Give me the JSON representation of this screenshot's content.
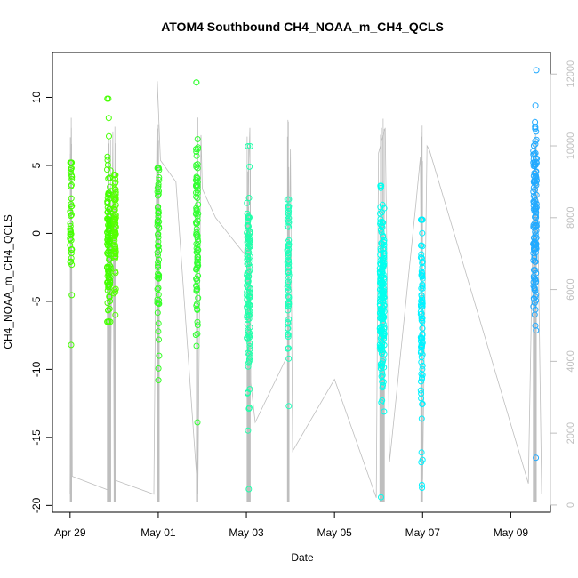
{
  "chart_data": {
    "type": "scatter",
    "title": "ATOM4 Southbound CH4_NOAA_m_CH4_QCLS",
    "xlabel": "Date",
    "ylabel": "CH4_NOAA_m_CH4_QCLS",
    "x_unit": "days since Apr 29",
    "xlim": [
      -0.4,
      10.9
    ],
    "ylim": [
      -20.5,
      13.3
    ],
    "y2lim": [
      -200,
      12600
    ],
    "x_ticks": [
      {
        "label": "Apr 29",
        "x": 0
      },
      {
        "label": "May 01",
        "x": 2
      },
      {
        "label": "May 03",
        "x": 4
      },
      {
        "label": "May 05",
        "x": 6
      },
      {
        "label": "May 07",
        "x": 8
      },
      {
        "label": "May 09",
        "x": 10
      }
    ],
    "y_ticks": [
      {
        "label": "10",
        "v": 10
      },
      {
        "label": "5",
        "v": 5
      },
      {
        "label": "0",
        "v": 0
      },
      {
        "label": "-5",
        "v": -5
      },
      {
        "label": "-10",
        "v": -10
      },
      {
        "label": "-15",
        "v": -15
      },
      {
        "label": "-20",
        "v": -20
      }
    ],
    "y2_ticks": [
      {
        "label": "0",
        "v": 0
      },
      {
        "label": "2000",
        "v": 2000
      },
      {
        "label": "4000",
        "v": 4000
      },
      {
        "label": "6000",
        "v": 6000
      },
      {
        "label": "8000",
        "v": 8000
      },
      {
        "label": "10000",
        "v": 10000
      },
      {
        "label": "12000",
        "v": 12000
      }
    ],
    "flights": [
      {
        "x_center": 0.02,
        "x_spread": 0.04,
        "color": "#44ff00",
        "n": 45,
        "mean": 1.0,
        "sd": 2.5,
        "ymin": -8.2,
        "ymax": 5.2
      },
      {
        "x_center": 0.88,
        "x_spread": 0.08,
        "color": "#44ff00",
        "n": 130,
        "mean": -0.5,
        "sd": 3.0,
        "ymin": -6.5,
        "ymax": 9.9
      },
      {
        "x_center": 1.02,
        "x_spread": 0.04,
        "color": "#55ff00",
        "n": 80,
        "mean": 0.5,
        "sd": 2.3,
        "ymin": -6,
        "ymax": 4.3
      },
      {
        "x_center": 2.0,
        "x_spread": 0.04,
        "color": "#33ff22",
        "n": 65,
        "mean": -1.5,
        "sd": 3.5,
        "ymin": -10.8,
        "ymax": 4.8
      },
      {
        "x_center": 2.88,
        "x_spread": 0.05,
        "color": "#33ff33",
        "n": 95,
        "mean": -0.5,
        "sd": 3.8,
        "ymin": -13.9,
        "ymax": 11.1
      },
      {
        "x_center": 4.05,
        "x_spread": 0.08,
        "color": "#22ffaa",
        "n": 120,
        "mean": -4.0,
        "sd": 3.5,
        "ymin": -18.8,
        "ymax": 6.4
      },
      {
        "x_center": 4.95,
        "x_spread": 0.04,
        "color": "#22ffbb",
        "n": 70,
        "mean": -3.0,
        "sd": 3.0,
        "ymin": -12.7,
        "ymax": 2.5
      },
      {
        "x_center": 7.08,
        "x_spread": 0.1,
        "color": "#00ffee",
        "n": 190,
        "mean": -5.0,
        "sd": 3.5,
        "ymin": -19.4,
        "ymax": 3.5
      },
      {
        "x_center": 7.98,
        "x_spread": 0.04,
        "color": "#00f2ff",
        "n": 90,
        "mean": -5.0,
        "sd": 4.0,
        "ymin": -18.7,
        "ymax": 1.0
      },
      {
        "x_center": 10.55,
        "x_spread": 0.08,
        "color": "#22aaff",
        "n": 140,
        "mean": 0.5,
        "sd": 4.0,
        "ymin": -16.5,
        "ymax": 12.0
      }
    ],
    "altitude_series": {
      "name": "",
      "color": "#bebebe",
      "points": [
        [
          0.0,
          300
        ],
        [
          0.03,
          10500
        ],
        [
          0.05,
          800
        ],
        [
          0.9,
          400
        ],
        [
          0.97,
          10400
        ],
        [
          1.0,
          700
        ],
        [
          1.9,
          300
        ],
        [
          1.98,
          11800
        ],
        [
          2.05,
          9600
        ],
        [
          2.4,
          9000
        ],
        [
          2.9,
          300
        ],
        [
          2.97,
          10300
        ],
        [
          3.0,
          8800
        ],
        [
          3.3,
          8000
        ],
        [
          3.95,
          7000
        ],
        [
          4.0,
          7500
        ],
        [
          4.08,
          10500
        ],
        [
          4.1,
          3400
        ],
        [
          4.2,
          2300
        ],
        [
          4.95,
          4200
        ],
        [
          5.0,
          9900
        ],
        [
          5.05,
          1500
        ],
        [
          6.0,
          3500
        ],
        [
          6.95,
          200
        ],
        [
          7.0,
          9800
        ],
        [
          7.15,
          10500
        ],
        [
          7.25,
          1200
        ],
        [
          7.85,
          8400
        ],
        [
          7.95,
          9700
        ],
        [
          8.0,
          700
        ],
        [
          8.1,
          10000
        ],
        [
          8.15,
          9900
        ],
        [
          10.4,
          600
        ],
        [
          10.5,
          7800
        ],
        [
          10.6,
          9200
        ],
        [
          10.7,
          300
        ]
      ]
    }
  }
}
